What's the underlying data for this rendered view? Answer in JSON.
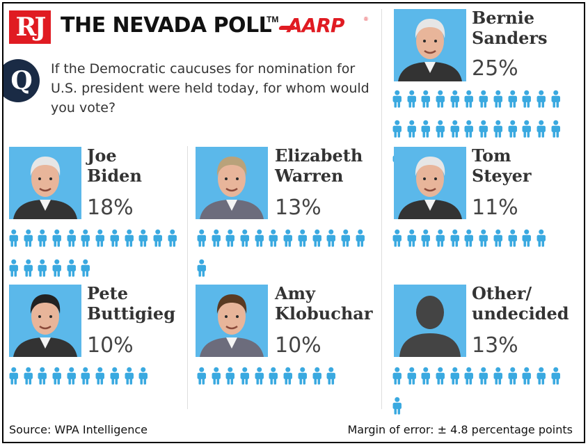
{
  "header": {
    "logo_text": "RJ",
    "title": "THE NEVADA POLL",
    "trademark": "TM",
    "partner": "AARP",
    "partner_reg": "®"
  },
  "question": {
    "badge": "Q",
    "text": "If the Democratic caucuses for nomination for U.S. president were held today, for whom would you vote?"
  },
  "footer": {
    "source": "Source: WPA Intelligence",
    "margin": "Margin of error: ± 4.8 percentage points"
  },
  "colors": {
    "icon": "#3aa9e0",
    "photo_bg": "#5bb8ea",
    "brand_red": "#e01b22"
  },
  "chart_data": {
    "type": "pictogram",
    "title": "THE NEVADA POLL",
    "unit": "%",
    "categories": [
      "Bernie Sanders",
      "Joe Biden",
      "Elizabeth Warren",
      "Tom Steyer",
      "Pete Buttigieg",
      "Amy Klobuchar",
      "Other/ undecided"
    ],
    "values": [
      25,
      18,
      13,
      11,
      10,
      10,
      13
    ],
    "candidates": [
      {
        "name": "Bernie\nSanders",
        "pct": "25%",
        "value": 25
      },
      {
        "name": "Joe\nBiden",
        "pct": "18%",
        "value": 18
      },
      {
        "name": "Elizabeth\nWarren",
        "pct": "13%",
        "value": 13
      },
      {
        "name": "Tom\nSteyer",
        "pct": "11%",
        "value": 11
      },
      {
        "name": "Pete\nButtigieg",
        "pct": "10%",
        "value": 10
      },
      {
        "name": "Amy\nKlobuchar",
        "pct": "10%",
        "value": 10
      },
      {
        "name": "Other/\nundecided",
        "pct": "13%",
        "value": 13
      }
    ]
  }
}
